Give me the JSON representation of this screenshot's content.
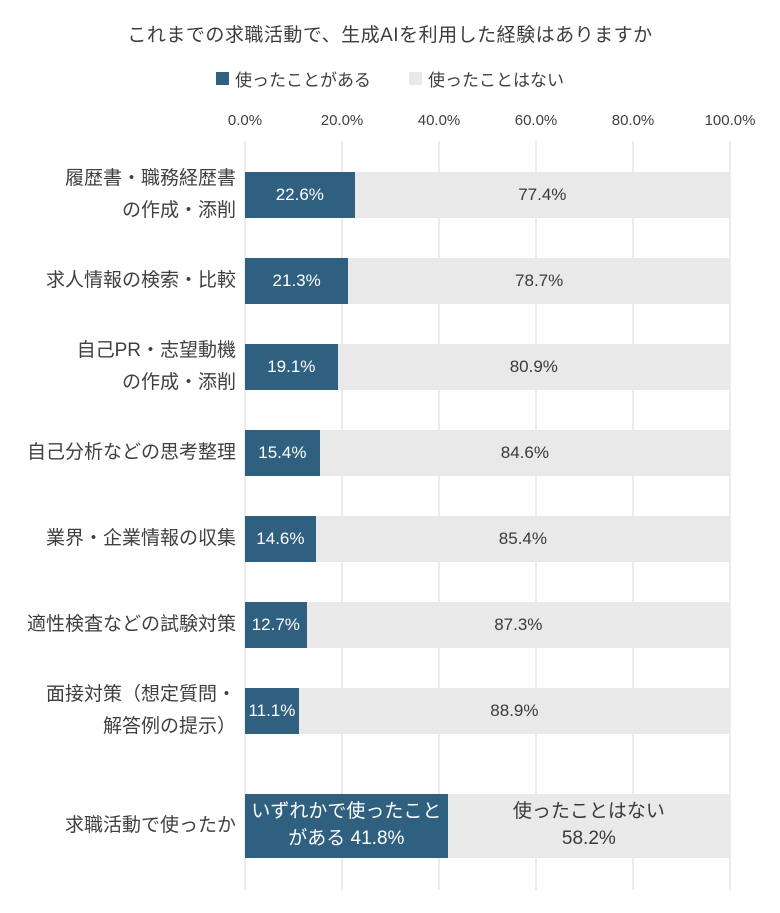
{
  "chart_data": {
    "type": "bar",
    "orientation": "horizontal",
    "stacked": true,
    "title": "これまでの求職活動で、生成AIを利用した経験はありますか",
    "legend_position": "top",
    "grid": true,
    "xlim": [
      0,
      100
    ],
    "x_ticks": [
      {
        "value": 0,
        "label": "0.0%"
      },
      {
        "value": 20,
        "label": "20.0%"
      },
      {
        "value": 40,
        "label": "40.0%"
      },
      {
        "value": 60,
        "label": "60.0%"
      },
      {
        "value": 80,
        "label": "80.0%"
      },
      {
        "value": 100,
        "label": "100.0%"
      }
    ],
    "categories": [
      "履歴書・職務経歴書の作成・添削",
      "求人情報の検索・比較",
      "自己PR・志望動機の作成・添削",
      "自己分析などの思考整理",
      "業界・企業情報の収集",
      "適性検査などの試験対策",
      "面接対策（想定質問・解答例の提示）",
      "求職活動で使ったか"
    ],
    "series": [
      {
        "name": "使ったことがある",
        "values": [
          22.6,
          21.3,
          19.1,
          15.4,
          14.6,
          12.7,
          11.1,
          41.8
        ]
      },
      {
        "name": "使ったことはない",
        "values": [
          77.4,
          78.7,
          80.9,
          84.6,
          85.4,
          87.3,
          88.9,
          58.2
        ]
      }
    ],
    "colors": {
      "used": "#2F6080",
      "not_used": "#E9E9E9",
      "gridline": "#D9D9D9"
    },
    "rows": [
      {
        "category_lines": [
          "履歴書・職務経歴書",
          "の作成・添削"
        ],
        "used": 22.6,
        "not_used": 77.4,
        "used_label": "22.6%",
        "not_used_label": "77.4%",
        "tall": false
      },
      {
        "category_lines": [
          "求人情報の検索・比較"
        ],
        "used": 21.3,
        "not_used": 78.7,
        "used_label": "21.3%",
        "not_used_label": "78.7%",
        "tall": false
      },
      {
        "category_lines": [
          "自己PR・志望動機",
          "の作成・添削"
        ],
        "used": 19.1,
        "not_used": 80.9,
        "used_label": "19.1%",
        "not_used_label": "80.9%",
        "tall": false
      },
      {
        "category_lines": [
          "自己分析などの思考整理"
        ],
        "used": 15.4,
        "not_used": 84.6,
        "used_label": "15.4%",
        "not_used_label": "84.6%",
        "tall": false
      },
      {
        "category_lines": [
          "業界・企業情報の収集"
        ],
        "used": 14.6,
        "not_used": 85.4,
        "used_label": "14.6%",
        "not_used_label": "85.4%",
        "tall": false
      },
      {
        "category_lines": [
          "適性検査などの試験対策"
        ],
        "used": 12.7,
        "not_used": 87.3,
        "used_label": "12.7%",
        "not_used_label": "87.3%",
        "tall": false
      },
      {
        "category_lines": [
          "面接対策（想定質問・",
          "解答例の提示）"
        ],
        "used": 11.1,
        "not_used": 88.9,
        "used_label": "11.1%",
        "not_used_label": "88.9%",
        "tall": false
      },
      {
        "category_lines": [
          "求職活動で使ったか"
        ],
        "used": 41.8,
        "not_used": 58.2,
        "used_label": "いずれかで使ったこと\nがある 41.8%",
        "not_used_label": "使ったことはない\n58.2%",
        "tall": true
      }
    ]
  }
}
